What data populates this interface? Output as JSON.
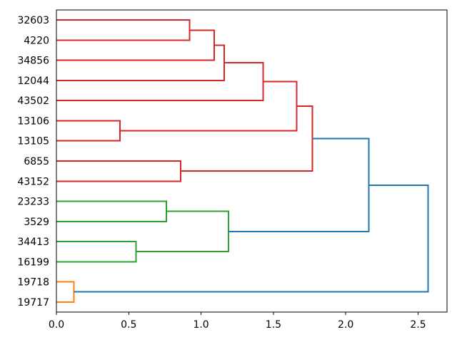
{
  "chart_data": {
    "type": "dendrogram",
    "orientation": "horizontal-root-right",
    "grid": false,
    "legend": null,
    "xlim": [
      0,
      2.7
    ],
    "x_tick_values": [
      0.0,
      0.5,
      1.0,
      1.5,
      2.0,
      2.5
    ],
    "x_tick_labels": [
      "0.0",
      "0.5",
      "1.0",
      "1.5",
      "2.0",
      "2.5"
    ],
    "leaves": [
      "32603",
      "4220",
      "34856",
      "12044",
      "43502",
      "13106",
      "13105",
      "6855",
      "43152",
      "23233",
      "3529",
      "34413",
      "16199",
      "19718",
      "19717"
    ],
    "colors": {
      "cluster_red": "#d62728",
      "cluster_green": "#2ca02c",
      "cluster_orange": "#ff7f0e",
      "above_threshold_blue": "#1f77b4",
      "axis": "#000000",
      "background": "#ffffff"
    },
    "links": [
      {
        "y1": 0,
        "d1": 0,
        "y2": 1,
        "d2": 0,
        "d": 0.92,
        "color": "#d62728"
      },
      {
        "y1": 0.5,
        "d1": 0.92,
        "y2": 2,
        "d2": 0,
        "d": 1.09,
        "color": "#d62728"
      },
      {
        "y1": 1.25,
        "d1": 1.09,
        "y2": 3,
        "d2": 0,
        "d": 1.16,
        "color": "#d62728"
      },
      {
        "y1": 2.125,
        "d1": 1.16,
        "y2": 4,
        "d2": 0,
        "d": 1.43,
        "color": "#d62728"
      },
      {
        "y1": 5,
        "d1": 0,
        "y2": 6,
        "d2": 0,
        "d": 0.44,
        "color": "#d62728"
      },
      {
        "y1": 3.0625,
        "d1": 1.43,
        "y2": 5.5,
        "d2": 0.44,
        "d": 1.66,
        "color": "#d62728"
      },
      {
        "y1": 7,
        "d1": 0,
        "y2": 8,
        "d2": 0,
        "d": 0.86,
        "color": "#d62728"
      },
      {
        "y1": 4.28125,
        "d1": 1.66,
        "y2": 7.5,
        "d2": 0.86,
        "d": 1.77,
        "color": "#d62728"
      },
      {
        "y1": 9,
        "d1": 0,
        "y2": 10,
        "d2": 0,
        "d": 0.76,
        "color": "#2ca02c"
      },
      {
        "y1": 11,
        "d1": 0,
        "y2": 12,
        "d2": 0,
        "d": 0.55,
        "color": "#2ca02c"
      },
      {
        "y1": 9.5,
        "d1": 0.76,
        "y2": 11.5,
        "d2": 0.55,
        "d": 1.19,
        "color": "#2ca02c"
      },
      {
        "y1": 13,
        "d1": 0,
        "y2": 14,
        "d2": 0,
        "d": 0.12,
        "color": "#ff7f0e"
      },
      {
        "y1": 5.890625,
        "d1": 1.77,
        "y2": 10.5,
        "d2": 1.19,
        "d": 2.16,
        "color": "#1f77b4"
      },
      {
        "y1": 8.1953125,
        "d1": 2.16,
        "y2": 13.5,
        "d2": 0.12,
        "d": 2.57,
        "color": "#1f77b4"
      }
    ]
  }
}
